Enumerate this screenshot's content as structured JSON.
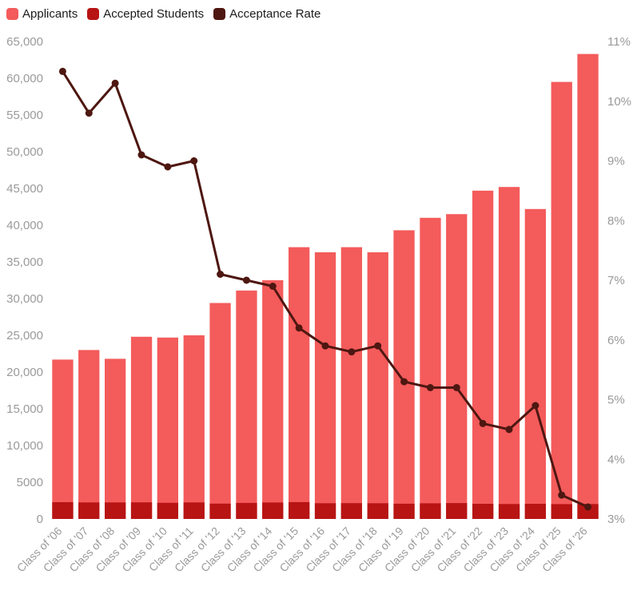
{
  "chart_data": {
    "type": "bar+line",
    "title": "",
    "categories": [
      "Class of '06",
      "Class of '07",
      "Class of '08",
      "Class of '09",
      "Class of '10",
      "Class of '11",
      "Class of '12",
      "Class of '13",
      "Class of '14",
      "Class of '15",
      "Class of '16",
      "Class of '17",
      "Class of '18",
      "Class of '19",
      "Class of '20",
      "Class of '21",
      "Class of '22",
      "Class of '23",
      "Class of '24",
      "Class of '25",
      "Class of '26"
    ],
    "series": [
      {
        "name": "Applicants",
        "type": "bar",
        "axis": "left",
        "color": "#f45b5b",
        "values": [
          21700,
          23000,
          21800,
          24800,
          24700,
          25000,
          29400,
          31100,
          32500,
          37000,
          36300,
          37000,
          36300,
          39300,
          41000,
          41500,
          44700,
          45200,
          42200,
          59500,
          63300
        ]
      },
      {
        "name": "Accepted Students",
        "type": "bar",
        "axis": "left",
        "color": "#b81414",
        "values": [
          2280,
          2250,
          2250,
          2260,
          2200,
          2250,
          2090,
          2180,
          2240,
          2290,
          2140,
          2150,
          2140,
          2080,
          2130,
          2160,
          2060,
          2030,
          2070,
          2020,
          2030
        ]
      },
      {
        "name": "Acceptance Rate",
        "type": "line",
        "axis": "right",
        "color": "#4e1711",
        "values": [
          10.5,
          9.8,
          10.3,
          9.1,
          8.9,
          9.0,
          7.1,
          7.0,
          6.9,
          6.2,
          5.9,
          5.8,
          5.9,
          5.3,
          5.2,
          5.2,
          4.6,
          4.5,
          4.9,
          3.4,
          3.2
        ]
      }
    ],
    "left_axis": {
      "min": 0,
      "max": 65000,
      "tick_labels": [
        "0",
        "5000",
        "10,000",
        "15,000",
        "20,000",
        "25,000",
        "30,000",
        "35,000",
        "40,000",
        "45,000",
        "50,000",
        "55,000",
        "60,000",
        "65,000"
      ]
    },
    "right_axis": {
      "min": 3,
      "max": 11,
      "tick_labels": [
        "3%",
        "4%",
        "5%",
        "6%",
        "7%",
        "8%",
        "9%",
        "10%",
        "11%"
      ]
    },
    "grid": false,
    "legend_position": "top-left",
    "xlabel": "",
    "ylabel_left": "",
    "ylabel_right": ""
  }
}
